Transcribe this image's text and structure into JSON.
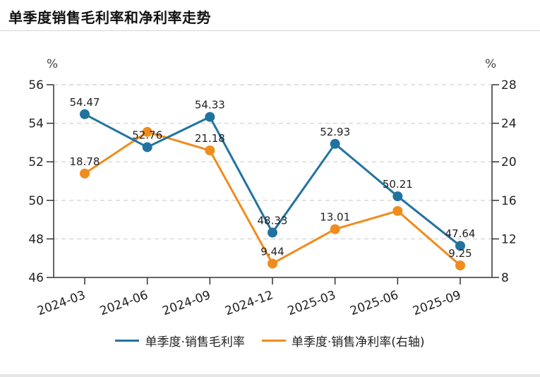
{
  "header": {
    "title": "单季度销售毛利率和净利率走势"
  },
  "chart_data": {
    "type": "line",
    "title": "单季度销售毛利率和净利率走势",
    "categories": [
      "2024-03",
      "2024-06",
      "2024-09",
      "2024-12",
      "2025-03",
      "2025-06",
      "2025-09"
    ],
    "y_left": {
      "label": "%",
      "range": [
        46,
        56
      ],
      "ticks": [
        46,
        48,
        50,
        52,
        54,
        56
      ]
    },
    "y_right": {
      "label": "%",
      "range": [
        8,
        28
      ],
      "ticks": [
        8,
        12,
        16,
        20,
        24,
        28
      ]
    },
    "grid": true,
    "legend_position": "bottom",
    "series": [
      {
        "name": "单季度·销售毛利率",
        "axis": "left",
        "color": "#21739f",
        "values": [
          54.47,
          52.76,
          54.33,
          48.33,
          52.93,
          50.21,
          47.64
        ],
        "labels": [
          "54.47",
          "52.76",
          "54.33",
          "48.33",
          "52.93",
          "50.21",
          "47.64"
        ]
      },
      {
        "name": "单季度·销售净利率(右轴)",
        "axis": "right",
        "color": "#f08c1e",
        "values": [
          18.78,
          23.1,
          21.18,
          9.44,
          13.01,
          14.9,
          9.25
        ],
        "labels": [
          "18.78",
          "",
          "21.18",
          "9.44",
          "13.01",
          "",
          "9.25"
        ]
      }
    ]
  }
}
